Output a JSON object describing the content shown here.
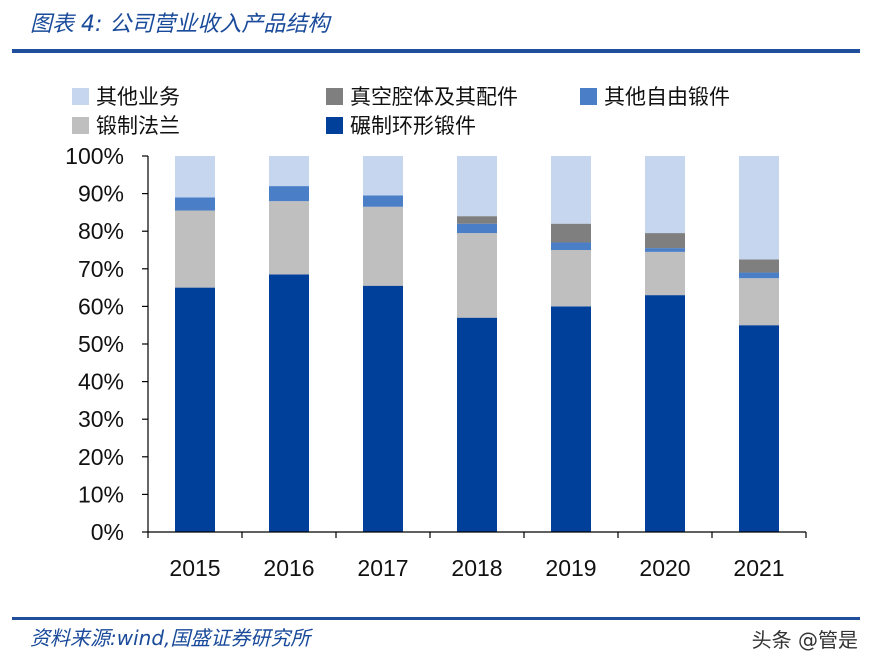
{
  "header": {
    "title": "图表 4:  公司营业收入产品结构"
  },
  "footer": {
    "source": "资料来源:wind,国盛证券研究所",
    "watermark": "头条 @管是"
  },
  "chart_data": {
    "type": "bar",
    "stacked": true,
    "title": "公司营业收入产品结构",
    "categories": [
      "2015",
      "2016",
      "2017",
      "2018",
      "2019",
      "2020",
      "2021"
    ],
    "ylim": [
      0,
      100
    ],
    "ytick_labels": [
      "0%",
      "10%",
      "20%",
      "30%",
      "40%",
      "50%",
      "60%",
      "70%",
      "80%",
      "90%",
      "100%"
    ],
    "series": [
      {
        "name": "碾制环形锻件",
        "color": "#003f9a",
        "values": [
          65,
          68.5,
          65.5,
          57,
          60,
          63,
          55
        ]
      },
      {
        "name": "锻制法兰",
        "color": "#bfbfbf",
        "values": [
          20.5,
          19.5,
          21,
          22.5,
          15,
          11.5,
          12.5
        ]
      },
      {
        "name": "其他自由锻件",
        "color": "#4a7fc8",
        "values": [
          3.5,
          4,
          3,
          2.5,
          2,
          1,
          1.5
        ]
      },
      {
        "name": "真空腔体及其配件",
        "color": "#7f7f7f",
        "values": [
          0,
          0,
          0,
          2,
          5,
          4,
          3.5
        ]
      },
      {
        "name": "其他业务",
        "color": "#c5d6ee",
        "values": [
          11,
          8,
          10.5,
          16,
          18,
          20.5,
          27.5
        ]
      }
    ],
    "legend": [
      {
        "name": "其他业务",
        "color": "#c5d6ee"
      },
      {
        "name": "真空腔体及其配件",
        "color": "#7f7f7f"
      },
      {
        "name": "其他自由锻件",
        "color": "#4a7fc8"
      },
      {
        "name": "锻制法兰",
        "color": "#bfbfbf"
      },
      {
        "name": "碾制环形锻件",
        "color": "#003f9a"
      }
    ],
    "legend_position": "top"
  }
}
